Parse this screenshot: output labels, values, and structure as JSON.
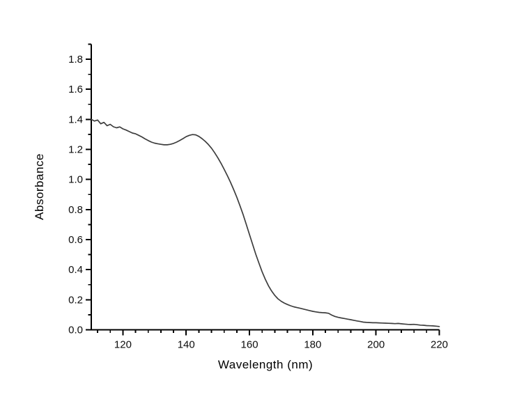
{
  "figure": {
    "background": "#ffffff",
    "title": ""
  },
  "chart_data": {
    "type": "line",
    "title": "",
    "xlabel": "Wavelength (nm)",
    "ylabel": "Absorbance",
    "xlim": [
      110,
      220
    ],
    "ylim": [
      0,
      1.9
    ],
    "x_major_ticks": [
      120,
      140,
      160,
      180,
      200,
      220
    ],
    "x_minor_step": 4,
    "y_major_ticks": [
      0.0,
      0.2,
      0.4,
      0.6,
      0.8,
      1.0,
      1.2,
      1.4,
      1.6,
      1.8
    ],
    "y_minor_step": 0.2,
    "y_minor_start": 0.1,
    "grid": false,
    "legend": "none",
    "frame": "left-bottom-only",
    "axis_color": "#000000",
    "line_color": "#3d3d3d",
    "tick_label_color": "#0d0d0d",
    "series": [
      {
        "name": "absorbance-spectrum",
        "x": [
          110,
          111,
          112,
          113,
          114,
          115,
          116,
          117,
          118,
          119,
          120,
          121,
          122,
          123,
          124,
          125,
          126,
          127,
          128,
          129,
          130,
          131,
          132,
          133,
          134,
          135,
          136,
          137,
          138,
          139,
          140,
          141,
          142,
          143,
          144,
          145,
          146,
          147,
          148,
          149,
          150,
          151,
          152,
          153,
          154,
          155,
          156,
          157,
          158,
          159,
          160,
          161,
          162,
          163,
          164,
          165,
          166,
          167,
          168,
          169,
          170,
          171,
          172,
          173,
          174,
          175,
          176,
          177,
          178,
          179,
          180,
          181,
          182,
          183,
          184,
          185,
          186,
          187,
          188,
          189,
          190,
          191,
          192,
          193,
          194,
          195,
          196,
          197,
          198,
          199,
          200,
          201,
          202,
          203,
          204,
          205,
          206,
          207,
          208,
          209,
          210,
          211,
          212,
          213,
          214,
          215,
          216,
          217,
          218,
          219,
          220
        ],
        "y": [
          1.4,
          1.389,
          1.396,
          1.371,
          1.38,
          1.358,
          1.367,
          1.351,
          1.344,
          1.35,
          1.337,
          1.329,
          1.319,
          1.309,
          1.304,
          1.294,
          1.283,
          1.27,
          1.259,
          1.249,
          1.242,
          1.238,
          1.234,
          1.231,
          1.231,
          1.234,
          1.24,
          1.249,
          1.26,
          1.272,
          1.285,
          1.294,
          1.299,
          1.297,
          1.287,
          1.272,
          1.254,
          1.233,
          1.208,
          1.178,
          1.145,
          1.108,
          1.068,
          1.026,
          0.982,
          0.934,
          0.882,
          0.826,
          0.766,
          0.701,
          0.635,
          0.568,
          0.503,
          0.443,
          0.386,
          0.336,
          0.293,
          0.258,
          0.229,
          0.206,
          0.19,
          0.178,
          0.168,
          0.16,
          0.153,
          0.148,
          0.143,
          0.138,
          0.133,
          0.128,
          0.123,
          0.119,
          0.116,
          0.114,
          0.113,
          0.11,
          0.098,
          0.089,
          0.083,
          0.079,
          0.075,
          0.071,
          0.067,
          0.063,
          0.059,
          0.055,
          0.051,
          0.049,
          0.048,
          0.047,
          0.047,
          0.046,
          0.045,
          0.044,
          0.043,
          0.042,
          0.041,
          0.042,
          0.04,
          0.038,
          0.036,
          0.035,
          0.036,
          0.034,
          0.031,
          0.03,
          0.028,
          0.027,
          0.026,
          0.024,
          0.022
        ]
      }
    ]
  }
}
